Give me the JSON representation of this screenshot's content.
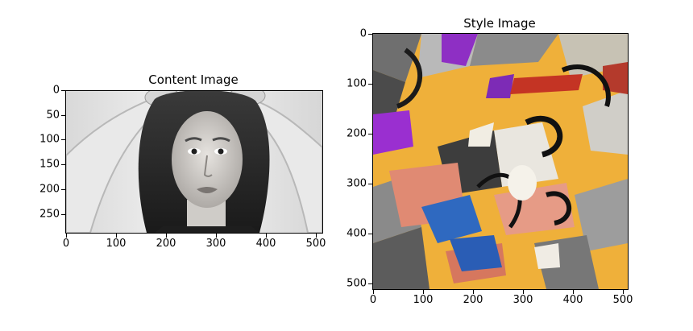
{
  "content_plot": {
    "title": "Content Image",
    "y_ticks": [
      "0",
      "50",
      "100",
      "150",
      "200",
      "250"
    ],
    "x_ticks": [
      "0",
      "100",
      "200",
      "300",
      "400",
      "500"
    ]
  },
  "style_plot": {
    "title": "Style Image",
    "y_ticks": [
      "0",
      "100",
      "200",
      "300",
      "400",
      "500"
    ],
    "x_ticks": [
      "0",
      "100",
      "200",
      "300",
      "400",
      "500"
    ]
  }
}
